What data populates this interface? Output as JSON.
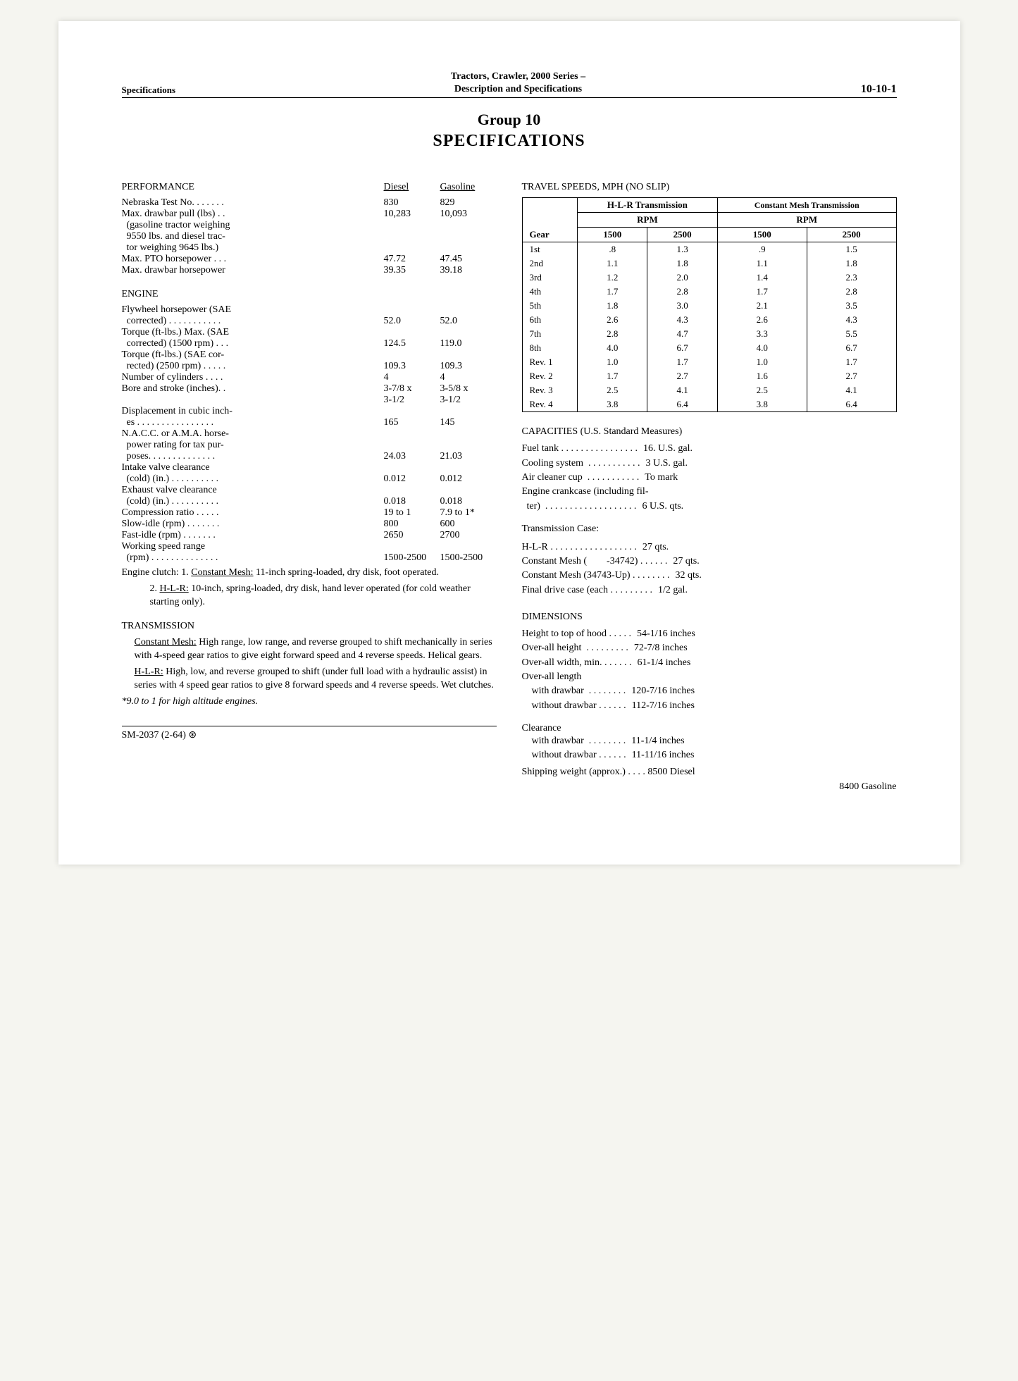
{
  "header": {
    "left": "Specifications",
    "center_line1": "Tractors, Crawler, 2000 Series –",
    "center_line2": "Description and Specifications",
    "right": "10-10-1"
  },
  "title": {
    "line1": "Group 10",
    "line2": "SPECIFICATIONS"
  },
  "performance": {
    "heading": "PERFORMANCE",
    "col1": "Diesel",
    "col2": "Gasoline",
    "rows": [
      {
        "label": "Nebraska Test No. . . . . . .",
        "v1": "830",
        "v2": "829"
      },
      {
        "label": "Max. drawbar pull (lbs) . .",
        "v1": "10,283",
        "v2": "10,093"
      },
      {
        "label": "  (gasoline tractor weighing",
        "v1": "",
        "v2": ""
      },
      {
        "label": "  9550 lbs. and diesel trac-",
        "v1": "",
        "v2": ""
      },
      {
        "label": "  tor weighing 9645 lbs.)",
        "v1": "",
        "v2": ""
      },
      {
        "label": "Max. PTO horsepower . . .",
        "v1": "47.72",
        "v2": "47.45"
      },
      {
        "label": "Max. drawbar horsepower",
        "v1": "39.35",
        "v2": "39.18"
      }
    ]
  },
  "engine": {
    "heading": "ENGINE",
    "rows": [
      {
        "label": "Flywheel horsepower (SAE",
        "v1": "",
        "v2": ""
      },
      {
        "label": "  corrected) . . . . . . . . . . .",
        "v1": "52.0",
        "v2": "52.0"
      },
      {
        "label": "Torque (ft-lbs.) Max. (SAE",
        "v1": "",
        "v2": ""
      },
      {
        "label": "  corrected) (1500 rpm) . . .",
        "v1": "124.5",
        "v2": "119.0"
      },
      {
        "label": "Torque (ft-lbs.) (SAE cor-",
        "v1": "",
        "v2": ""
      },
      {
        "label": "  rected) (2500 rpm) . . . . .",
        "v1": "109.3",
        "v2": "109.3"
      },
      {
        "label": "Number of cylinders . . . .",
        "v1": "4",
        "v2": "4"
      },
      {
        "label": "Bore and stroke (inches). .",
        "v1": "3-7/8 x",
        "v2": "3-5/8 x"
      },
      {
        "label": "",
        "v1": "3-1/2",
        "v2": "3-1/2"
      },
      {
        "label": "Displacement in cubic inch-",
        "v1": "",
        "v2": ""
      },
      {
        "label": "  es . . . . . . . . . . . . . . . .",
        "v1": "165",
        "v2": "145"
      },
      {
        "label": "N.A.C.C. or A.M.A. horse-",
        "v1": "",
        "v2": ""
      },
      {
        "label": "  power rating for tax pur-",
        "v1": "",
        "v2": ""
      },
      {
        "label": "  poses. . . . . . . . . . . . . .",
        "v1": "24.03",
        "v2": "21.03"
      },
      {
        "label": "Intake valve clearance",
        "v1": "",
        "v2": ""
      },
      {
        "label": "  (cold) (in.) . . . . . . . . . .",
        "v1": "0.012",
        "v2": "0.012"
      },
      {
        "label": "Exhaust valve clearance",
        "v1": "",
        "v2": ""
      },
      {
        "label": "  (cold) (in.) . . . . . . . . . .",
        "v1": "0.018",
        "v2": "0.018"
      },
      {
        "label": "Compression ratio . . . . .",
        "v1": "19 to 1",
        "v2": "7.9 to 1*"
      },
      {
        "label": "Slow-idle (rpm) . . . . . . .",
        "v1": "800",
        "v2": "600"
      },
      {
        "label": "Fast-idle (rpm) . . . . . . .",
        "v1": "2650",
        "v2": "2700"
      },
      {
        "label": "Working speed range",
        "v1": "",
        "v2": ""
      },
      {
        "label": "  (rpm) . . . . . . . . . . . . . .",
        "v1": "1500-2500",
        "v2": "1500-2500"
      }
    ],
    "clutch1": "Engine clutch: 1. Constant Mesh: 11-inch spring-loaded, dry disk, foot operated.",
    "clutch2_pre": "2. ",
    "clutch2_u": "H-L-R:",
    "clutch2_post": " 10-inch, spring-loaded, dry disk, hand lever operated (for cold weather starting only)."
  },
  "transmission": {
    "heading": "TRANSMISSION",
    "p1_u": "Constant Mesh:",
    "p1": " High range, low range, and reverse grouped to shift mechanically in series with 4-speed gear ratios to give eight forward speed and 4 reverse speeds. Helical gears.",
    "p2_u": "H-L-R:",
    "p2": " High, low, and reverse grouped to shift (under full load with a hydraulic assist) in series with 4 speed gear ratios to give 8 forward speeds and 4 reverse speeds. Wet clutches.",
    "note": "*9.0 to 1 for high altitude engines."
  },
  "travel": {
    "heading": "TRAVEL SPEEDS, MPH (NO SLIP)",
    "h1": "H-L-R Transmission",
    "h2": "Constant Mesh Transmission",
    "sub": "RPM",
    "gear": "Gear",
    "c1": "1500",
    "c2": "2500",
    "c3": "1500",
    "c4": "2500",
    "rows": [
      [
        "1st",
        ".8",
        "1.3",
        ".9",
        "1.5"
      ],
      [
        "2nd",
        "1.1",
        "1.8",
        "1.1",
        "1.8"
      ],
      [
        "3rd",
        "1.2",
        "2.0",
        "1.4",
        "2.3"
      ],
      [
        "4th",
        "1.7",
        "2.8",
        "1.7",
        "2.8"
      ],
      [
        "5th",
        "1.8",
        "3.0",
        "2.1",
        "3.5"
      ],
      [
        "6th",
        "2.6",
        "4.3",
        "2.6",
        "4.3"
      ],
      [
        "7th",
        "2.8",
        "4.7",
        "3.3",
        "5.5"
      ],
      [
        "8th",
        "4.0",
        "6.7",
        "4.0",
        "6.7"
      ],
      [
        "Rev. 1",
        "1.0",
        "1.7",
        "1.0",
        "1.7"
      ],
      [
        "Rev. 2",
        "1.7",
        "2.7",
        "1.6",
        "2.7"
      ],
      [
        "Rev. 3",
        "2.5",
        "4.1",
        "2.5",
        "4.1"
      ],
      [
        "Rev. 4",
        "3.8",
        "6.4",
        "3.8",
        "6.4"
      ]
    ]
  },
  "capacities": {
    "heading": "CAPACITIES (U.S. Standard Measures)",
    "rows": [
      [
        "Fuel tank . . . . . . . . . . . . . . . .",
        "16. U.S. gal."
      ],
      [
        "Cooling system  . . . . . . . . . . .",
        "3 U.S. gal."
      ],
      [
        "Air cleaner cup  . . . . . . . . . . .",
        "To mark"
      ],
      [
        "Engine crankcase (including fil-",
        ""
      ],
      [
        "  ter)  . . . . . . . . . . . . . . . . . . .",
        "6 U.S. qts."
      ]
    ],
    "trans_head": "Transmission Case:",
    "trans_rows": [
      [
        "H-L-R . . . . . . . . . . . . . . . . . .",
        "27 qts."
      ],
      [
        "Constant Mesh (        -34742) . . . . . .",
        "27 qts."
      ],
      [
        "Constant Mesh (34743-Up) . . . . . . . .",
        "32 qts."
      ],
      [
        "Final drive case (each . . . . . . . . .",
        "1/2 gal."
      ]
    ]
  },
  "dimensions": {
    "heading": "DIMENSIONS",
    "rows": [
      [
        "Height to top of hood . . . . .",
        "54-1/16 inches"
      ],
      [
        "Over-all height  . . . . . . . . .",
        "72-7/8 inches"
      ],
      [
        "Over-all width, min. . . . . . .",
        "61-1/4 inches"
      ],
      [
        "Over-all length",
        ""
      ],
      [
        "    with drawbar  . . . . . . . .",
        "120-7/16 inches"
      ],
      [
        "    without drawbar . . . . . .",
        "112-7/16 inches"
      ]
    ],
    "clearance_head": "Clearance",
    "clearance_rows": [
      [
        "    with drawbar  . . . . . . . .",
        "11-1/4 inches"
      ],
      [
        "    without drawbar . . . . . .",
        "11-11/16 inches"
      ]
    ],
    "ship1": "Shipping weight (approx.) . . . .   8500 Diesel",
    "ship2": "8400 Gasoline"
  },
  "footer": "SM-2037   (2-64) ⊛"
}
